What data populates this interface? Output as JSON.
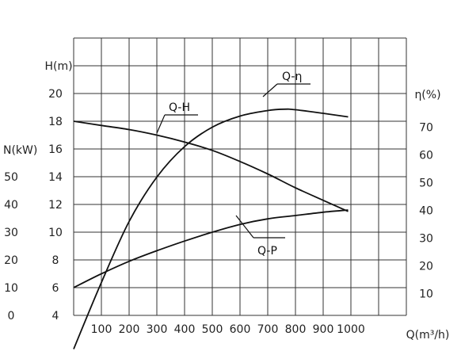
{
  "chart_data": {
    "type": "line",
    "xlabel": "Q(m³/h)",
    "x_ticks": [
      "100",
      "200",
      "300",
      "400",
      "500",
      "600",
      "700",
      "800",
      "900",
      "1000"
    ],
    "xlim": [
      0,
      1100
    ],
    "axes": {
      "H": {
        "label": "H(m)",
        "ticks": [
          "4",
          "6",
          "8",
          "10",
          "12",
          "14",
          "16",
          "18",
          "20"
        ],
        "range": [
          4,
          24
        ]
      },
      "N": {
        "label": "N(kW)",
        "ticks": [
          "0",
          "10",
          "20",
          "30",
          "40",
          "50"
        ],
        "range": [
          0,
          60
        ]
      },
      "eta": {
        "label": "η(%)",
        "ticks": [
          "10",
          "20",
          "30",
          "40",
          "50",
          "60",
          "70"
        ],
        "range": [
          -10,
          90
        ]
      }
    },
    "grid": true,
    "series": [
      {
        "name": "Q-H",
        "axis": "H",
        "x": [
          0,
          100,
          200,
          300,
          400,
          500,
          600,
          700,
          800,
          900,
          990
        ],
        "y": [
          18.0,
          17.7,
          17.4,
          17.0,
          16.5,
          15.9,
          15.1,
          14.2,
          13.2,
          12.3,
          11.5
        ]
      },
      {
        "name": "Q-η",
        "axis": "eta",
        "x": [
          0,
          100,
          200,
          300,
          400,
          500,
          600,
          700,
          760,
          800,
          900,
          990
        ],
        "y": [
          -10,
          14,
          36,
          52,
          63,
          70,
          74,
          76,
          76.5,
          76.3,
          75,
          73.7
        ]
      },
      {
        "name": "Q-P",
        "axis": "N",
        "x": [
          0,
          100,
          200,
          300,
          400,
          500,
          600,
          700,
          800,
          900,
          990
        ],
        "y": [
          10.0,
          15.0,
          19.5,
          23.3,
          26.8,
          30.0,
          32.8,
          34.8,
          36.0,
          37.2,
          38.0
        ]
      }
    ]
  }
}
